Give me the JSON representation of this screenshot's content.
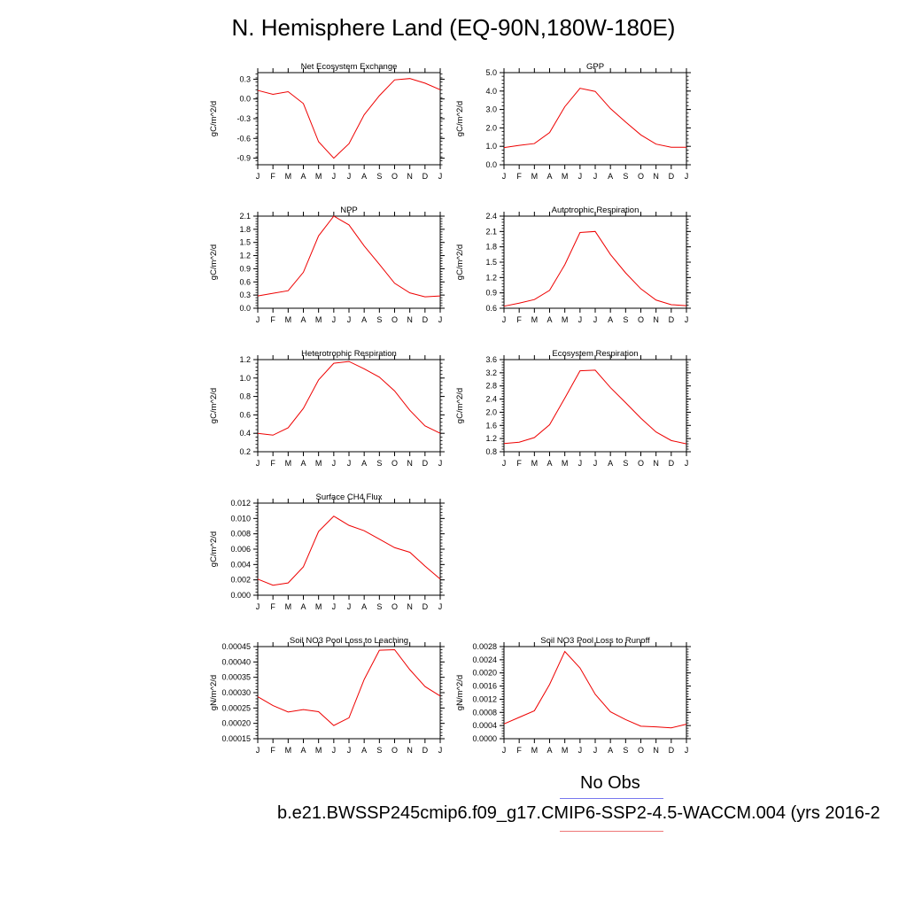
{
  "page": {
    "title": "N. Hemisphere Land (EQ-90N,180W-180E)"
  },
  "legend": {
    "obs_label": "No Obs",
    "obs_color": "#7777ee",
    "model_label": "b.e21.BWSSP245cmip6.f09_g17.CMIP6-SSP2-4.5-WACCM.004 (yrs 2016-2",
    "model_color": "#ee7777"
  },
  "line_color": "#ee0000",
  "chart_data": [
    {
      "type": "line",
      "title": "Net Ecosystem Exchange",
      "ylabel": "gC/m^2/d",
      "x": [
        "J",
        "F",
        "M",
        "A",
        "M",
        "J",
        "J",
        "A",
        "S",
        "O",
        "N",
        "D",
        "J"
      ],
      "ylim": [
        -1.0,
        0.4
      ],
      "yticks": [
        -0.9,
        -0.6,
        -0.3,
        0.0,
        0.3
      ],
      "ytick_labels": [
        "-0.9",
        "-0.6",
        "-0.3",
        "0.0",
        "0.3"
      ],
      "series": [
        {
          "values": [
            0.13,
            0.07,
            0.11,
            -0.07,
            -0.65,
            -0.9,
            -0.68,
            -0.24,
            0.05,
            0.29,
            0.31,
            0.24,
            0.14
          ]
        }
      ]
    },
    {
      "type": "line",
      "title": "GPP",
      "ylabel": "gC/m^2/d",
      "x": [
        "J",
        "F",
        "M",
        "A",
        "M",
        "J",
        "J",
        "A",
        "S",
        "O",
        "N",
        "D",
        "J"
      ],
      "ylim": [
        0.0,
        5.0
      ],
      "yticks": [
        0.0,
        1.0,
        2.0,
        3.0,
        4.0,
        5.0
      ],
      "ytick_labels": [
        "0.0",
        "1.0",
        "2.0",
        "3.0",
        "4.0",
        "5.0"
      ],
      "series": [
        {
          "values": [
            0.93,
            1.05,
            1.15,
            1.75,
            3.15,
            4.15,
            3.98,
            3.05,
            2.32,
            1.62,
            1.12,
            0.95,
            0.95
          ]
        }
      ]
    },
    {
      "type": "line",
      "title": "NPP",
      "ylabel": "gC/m^2/d",
      "x": [
        "J",
        "F",
        "M",
        "A",
        "M",
        "J",
        "J",
        "A",
        "S",
        "O",
        "N",
        "D",
        "J"
      ],
      "ylim": [
        0.0,
        2.1
      ],
      "yticks": [
        0.0,
        0.3,
        0.6,
        0.9,
        1.2,
        1.5,
        1.8,
        2.1
      ],
      "ytick_labels": [
        "0.0",
        "0.3",
        "0.6",
        "0.9",
        "1.2",
        "1.5",
        "1.8",
        "2.1"
      ],
      "series": [
        {
          "values": [
            0.28,
            0.34,
            0.4,
            0.82,
            1.65,
            2.1,
            1.9,
            1.42,
            1.0,
            0.57,
            0.35,
            0.26,
            0.28
          ]
        }
      ]
    },
    {
      "type": "line",
      "title": "Autotrophic Respiration",
      "ylabel": "gC/m^2/d",
      "x": [
        "J",
        "F",
        "M",
        "A",
        "M",
        "J",
        "J",
        "A",
        "S",
        "O",
        "N",
        "D",
        "J"
      ],
      "ylim": [
        0.6,
        2.4
      ],
      "yticks": [
        0.6,
        0.9,
        1.2,
        1.5,
        1.8,
        2.1,
        2.4
      ],
      "ytick_labels": [
        "0.6",
        "0.9",
        "1.2",
        "1.5",
        "1.8",
        "2.1",
        "2.4"
      ],
      "series": [
        {
          "values": [
            0.64,
            0.7,
            0.77,
            0.95,
            1.45,
            2.08,
            2.1,
            1.65,
            1.29,
            0.98,
            0.76,
            0.67,
            0.65
          ]
        }
      ]
    },
    {
      "type": "line",
      "title": "Heterotrophic Respiration",
      "ylabel": "gC/m^2/d",
      "x": [
        "J",
        "F",
        "M",
        "A",
        "M",
        "J",
        "J",
        "A",
        "S",
        "O",
        "N",
        "D",
        "J"
      ],
      "ylim": [
        0.2,
        1.2
      ],
      "yticks": [
        0.2,
        0.4,
        0.6,
        0.8,
        1.0,
        1.2
      ],
      "ytick_labels": [
        "0.2",
        "0.4",
        "0.6",
        "0.8",
        "1.0",
        "1.2"
      ],
      "series": [
        {
          "values": [
            0.4,
            0.38,
            0.46,
            0.67,
            0.98,
            1.16,
            1.18,
            1.1,
            1.01,
            0.86,
            0.65,
            0.48,
            0.4
          ]
        }
      ]
    },
    {
      "type": "line",
      "title": "Ecosystem Respiration",
      "ylabel": "gC/m^2/d",
      "x": [
        "J",
        "F",
        "M",
        "A",
        "M",
        "J",
        "J",
        "A",
        "S",
        "O",
        "N",
        "D",
        "J"
      ],
      "ylim": [
        0.8,
        3.6
      ],
      "yticks": [
        0.8,
        1.2,
        1.6,
        2.0,
        2.4,
        2.8,
        3.2,
        3.6
      ],
      "ytick_labels": [
        "0.8",
        "1.2",
        "1.6",
        "2.0",
        "2.4",
        "2.8",
        "3.2",
        "3.6"
      ],
      "series": [
        {
          "values": [
            1.05,
            1.09,
            1.23,
            1.62,
            2.43,
            3.26,
            3.28,
            2.75,
            2.29,
            1.82,
            1.4,
            1.14,
            1.04
          ]
        }
      ]
    },
    {
      "type": "line",
      "title": "Surface CH4 Flux",
      "ylabel": "gC/m^2/d",
      "x": [
        "J",
        "F",
        "M",
        "A",
        "M",
        "J",
        "J",
        "A",
        "S",
        "O",
        "N",
        "D",
        "J"
      ],
      "ylim": [
        0.0,
        0.012
      ],
      "yticks": [
        0.0,
        0.002,
        0.004,
        0.006,
        0.008,
        0.01,
        0.012
      ],
      "ytick_labels": [
        "0.000",
        "0.002",
        "0.004",
        "0.006",
        "0.008",
        "0.010",
        "0.012"
      ],
      "series": [
        {
          "values": [
            0.0021,
            0.0013,
            0.0016,
            0.0037,
            0.0083,
            0.0103,
            0.0091,
            0.0084,
            0.0073,
            0.0062,
            0.0056,
            0.0038,
            0.0021
          ]
        }
      ]
    },
    {
      "type": "line",
      "title": "Soil NO3 Pool Loss to Leaching",
      "ylabel": "gN/m^2/d",
      "x": [
        "J",
        "F",
        "M",
        "A",
        "M",
        "J",
        "J",
        "A",
        "S",
        "O",
        "N",
        "D",
        "J"
      ],
      "ylim": [
        0.00015,
        0.00045
      ],
      "yticks": [
        0.00015,
        0.0002,
        0.00025,
        0.0003,
        0.00035,
        0.0004,
        0.00045
      ],
      "ytick_labels": [
        "0.00015",
        "0.00020",
        "0.00025",
        "0.00030",
        "0.00035",
        "0.00040",
        "0.00045"
      ],
      "series": [
        {
          "values": [
            0.000287,
            0.000258,
            0.000237,
            0.000245,
            0.000238,
            0.000193,
            0.000218,
            0.000343,
            0.000438,
            0.00044,
            0.000375,
            0.00032,
            0.000289
          ]
        }
      ]
    },
    {
      "type": "line",
      "title": "Soil NO3 Pool Loss to Runoff",
      "ylabel": "gN/m^2/d",
      "x": [
        "J",
        "F",
        "M",
        "A",
        "M",
        "J",
        "J",
        "A",
        "S",
        "O",
        "N",
        "D",
        "J"
      ],
      "ylim": [
        0.0,
        0.0028
      ],
      "yticks": [
        0.0,
        0.0004,
        0.0008,
        0.0012,
        0.0016,
        0.002,
        0.0024,
        0.0028
      ],
      "ytick_labels": [
        "0.0000",
        "0.0004",
        "0.0008",
        "0.0012",
        "0.0016",
        "0.0020",
        "0.0024",
        "0.0028"
      ],
      "series": [
        {
          "values": [
            0.00045,
            0.00065,
            0.00085,
            0.00165,
            0.00265,
            0.00215,
            0.00135,
            0.00082,
            0.00058,
            0.00038,
            0.00036,
            0.00033,
            0.00044
          ]
        }
      ]
    }
  ]
}
